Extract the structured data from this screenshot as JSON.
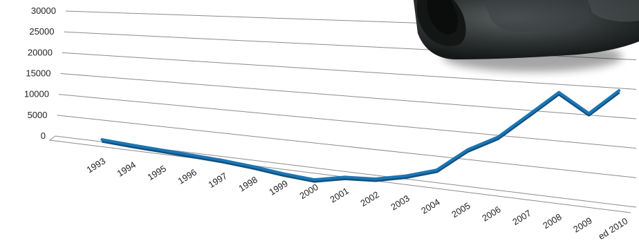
{
  "chart_data": {
    "type": "line",
    "title": "",
    "xlabel": "",
    "ylabel": "",
    "ylim": [
      0,
      30000
    ],
    "yticks": [
      "30000",
      "25000",
      "20000",
      "15000",
      "10000",
      "5000",
      "0"
    ],
    "grid": true,
    "legend": "none",
    "categories": [
      "1993",
      "1994",
      "1995",
      "1996",
      "1997",
      "1998",
      "1999",
      "2000",
      "2001",
      "2002",
      "2003",
      "2004",
      "2005",
      "2006",
      "2007",
      "2008",
      "2009",
      "ed 2010"
    ],
    "series": [
      {
        "values": [
          500,
          100,
          -200,
          -500,
          -800,
          -1300,
          -2000,
          -2400,
          -1100,
          -700,
          600,
          2400,
          6800,
          9700,
          14200,
          18600,
          15300,
          19600
        ]
      }
    ],
    "colors": {
      "line": "#1c75b4",
      "grid": "#8a8a8a",
      "text": "#222222"
    }
  },
  "decor": {
    "binoculars": "binoculars-icon"
  }
}
